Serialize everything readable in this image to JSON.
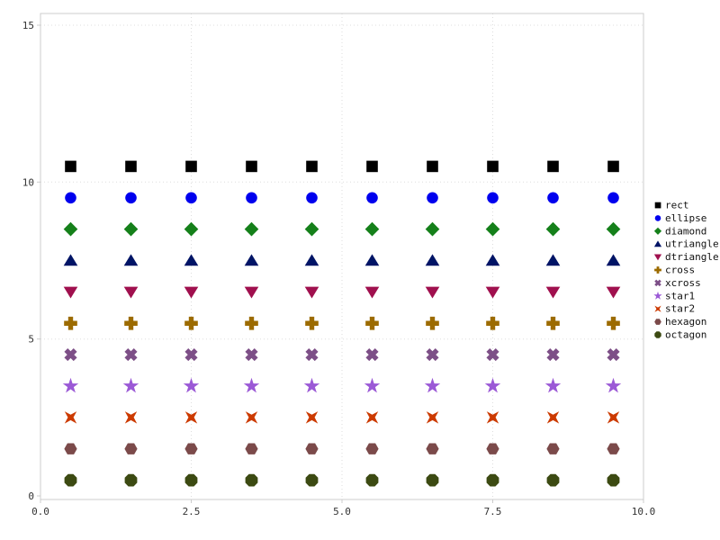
{
  "chart_data": {
    "type": "scatter",
    "title": "",
    "xlabel": "",
    "ylabel": "",
    "xlim": [
      0,
      10
    ],
    "ylim": [
      0,
      15
    ],
    "xticks": [
      "0.0",
      "2.5",
      "5.0",
      "7.5",
      "10.0"
    ],
    "xtick_values": [
      0,
      2.5,
      5,
      7.5,
      10
    ],
    "yticks": [
      "0",
      "5",
      "10",
      "15"
    ],
    "ytick_values": [
      0,
      5,
      10,
      15
    ],
    "grid": true,
    "legend_position": "right",
    "x": [
      0.5,
      1.5,
      2.5,
      3.5,
      4.5,
      5.5,
      6.5,
      7.5,
      8.5,
      9.5
    ],
    "series": [
      {
        "name": "rect",
        "marker": "rect",
        "color": "#000000",
        "y": 10.5
      },
      {
        "name": "ellipse",
        "marker": "ellipse",
        "color": "#0000ee",
        "y": 9.5
      },
      {
        "name": "diamond",
        "marker": "diamond",
        "color": "#15801a",
        "y": 8.5
      },
      {
        "name": "utriangle",
        "marker": "utriangle",
        "color": "#001466",
        "y": 7.5
      },
      {
        "name": "dtriangle",
        "marker": "dtriangle",
        "color": "#a0104e",
        "y": 6.5
      },
      {
        "name": "cross",
        "marker": "cross",
        "color": "#9c6b00",
        "y": 5.5
      },
      {
        "name": "xcross",
        "marker": "xcross",
        "color": "#7d4f87",
        "y": 4.5
      },
      {
        "name": "star1",
        "marker": "star1",
        "color": "#9b59d6",
        "y": 3.5
      },
      {
        "name": "star2",
        "marker": "star2",
        "color": "#cc3a00",
        "y": 2.5
      },
      {
        "name": "hexagon",
        "marker": "hexagon",
        "color": "#7b4a4a",
        "y": 1.5
      },
      {
        "name": "octagon",
        "marker": "octagon",
        "color": "#3c4a12",
        "y": 0.5
      }
    ],
    "style": {
      "background": "#ffffff",
      "frame_color": "#cccccc",
      "grid_color": "#dddddd",
      "tick_label_color": "#333333",
      "legend_text_color": "#111111"
    }
  }
}
